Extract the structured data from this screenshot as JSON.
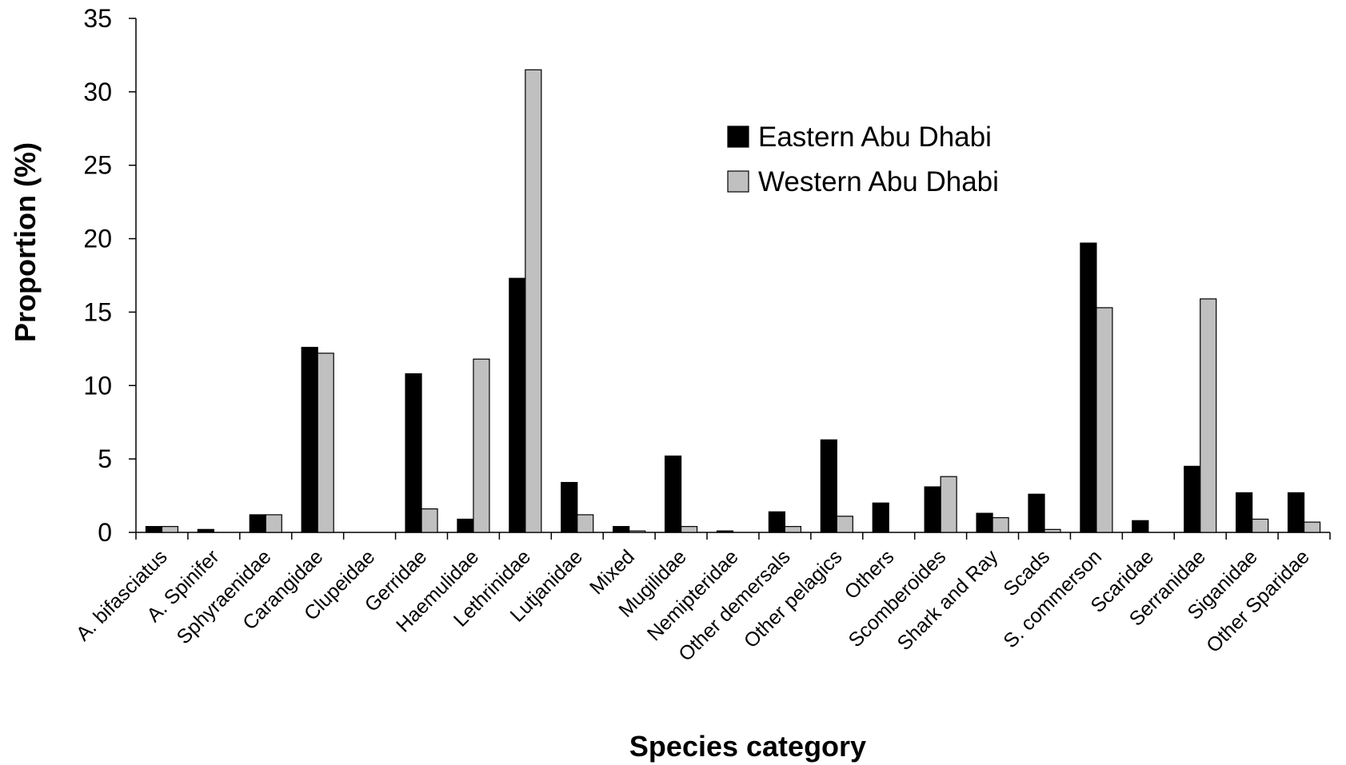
{
  "chart_data": {
    "type": "bar",
    "title": "",
    "xlabel": "Species category",
    "ylabel": "Proportion (%)",
    "ylim": [
      0,
      35
    ],
    "yticks": [
      0,
      5,
      10,
      15,
      20,
      25,
      30,
      35
    ],
    "grid": false,
    "legend_position": "top-right",
    "categories": [
      "A. bifasciatus",
      "A. Spinifer",
      "Sphyraenidae",
      "Carangidae",
      "Clupeidae",
      "Gerridae",
      "Haemulidae",
      "Lethrinidae",
      "Lutjanidae",
      "Mixed",
      "Mugilidae",
      "Nemipteridae",
      "Other demersals",
      "Other pelagics",
      "Others",
      "Scomberoides",
      "Shark and Ray",
      "Scads",
      "S. commerson",
      "Scaridae",
      "Serranidae",
      "Siganidae",
      "Other Sparidae"
    ],
    "series": [
      {
        "name": "Eastern Abu Dhabi",
        "color": "#000000",
        "values": [
          0.4,
          0.2,
          1.2,
          12.6,
          0,
          10.8,
          0.9,
          17.3,
          3.4,
          0.4,
          5.2,
          0.1,
          1.4,
          6.3,
          2.0,
          3.1,
          1.3,
          2.6,
          19.7,
          0.8,
          4.5,
          2.7,
          2.7
        ]
      },
      {
        "name": "Western Abu Dhabi",
        "color": "#c0c0c0",
        "values": [
          0.4,
          0,
          1.2,
          12.2,
          0,
          1.6,
          11.8,
          31.5,
          1.2,
          0.1,
          0.4,
          0,
          0.4,
          1.1,
          0,
          3.8,
          1.0,
          0.2,
          15.3,
          0,
          15.9,
          0.9,
          0.7
        ]
      }
    ]
  }
}
